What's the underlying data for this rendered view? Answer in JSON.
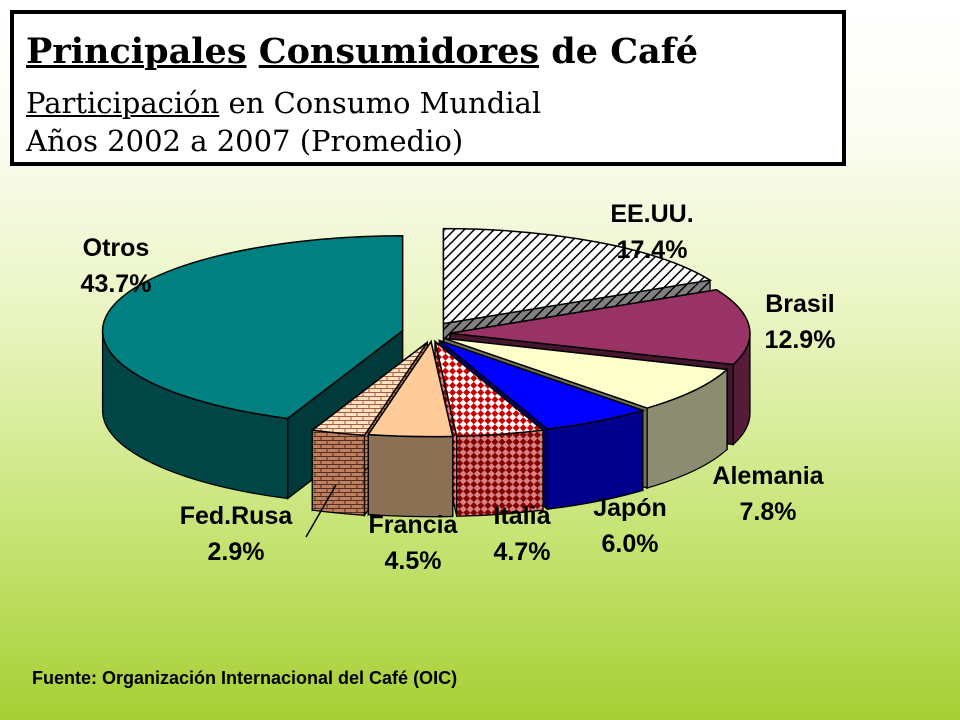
{
  "title": {
    "line1": [
      "Principales",
      "Consumidores",
      "de Café"
    ],
    "line2": [
      "Participación",
      "en Consumo Mundial"
    ],
    "line3": "Años 2002 a 2007 (Promedio)"
  },
  "chart_data": {
    "type": "pie",
    "style": "3d-exploded",
    "slices": [
      {
        "label": "EE.UU.",
        "value": 17.4,
        "value_label": "17.4%",
        "color": "#ffffff",
        "pattern": "diagonal-hatch"
      },
      {
        "label": "Brasil",
        "value": 12.9,
        "value_label": "12.9%",
        "color": "#993366",
        "pattern": "solid"
      },
      {
        "label": "Alemania",
        "value": 7.8,
        "value_label": "7.8%",
        "color": "#ffffcc",
        "pattern": "solid"
      },
      {
        "label": "Japón",
        "value": 6.0,
        "value_label": "6.0%",
        "color": "#0000ff",
        "pattern": "solid"
      },
      {
        "label": "Italia",
        "value": 4.7,
        "value_label": "4.7%",
        "color": "#cc0000",
        "pattern": "checker"
      },
      {
        "label": "Francia",
        "value": 4.5,
        "value_label": "4.5%",
        "color": "#ffcc99",
        "pattern": "solid"
      },
      {
        "label": "Fed.Rusa",
        "value": 2.9,
        "value_label": "2.9%",
        "color": "#c08060",
        "pattern": "brick"
      },
      {
        "label": "Otros",
        "value": 43.7,
        "value_label": "43.7%",
        "color": "#008080",
        "pattern": "solid"
      }
    ]
  },
  "source": "Fuente: Organización Internacional del Café (OIC)"
}
